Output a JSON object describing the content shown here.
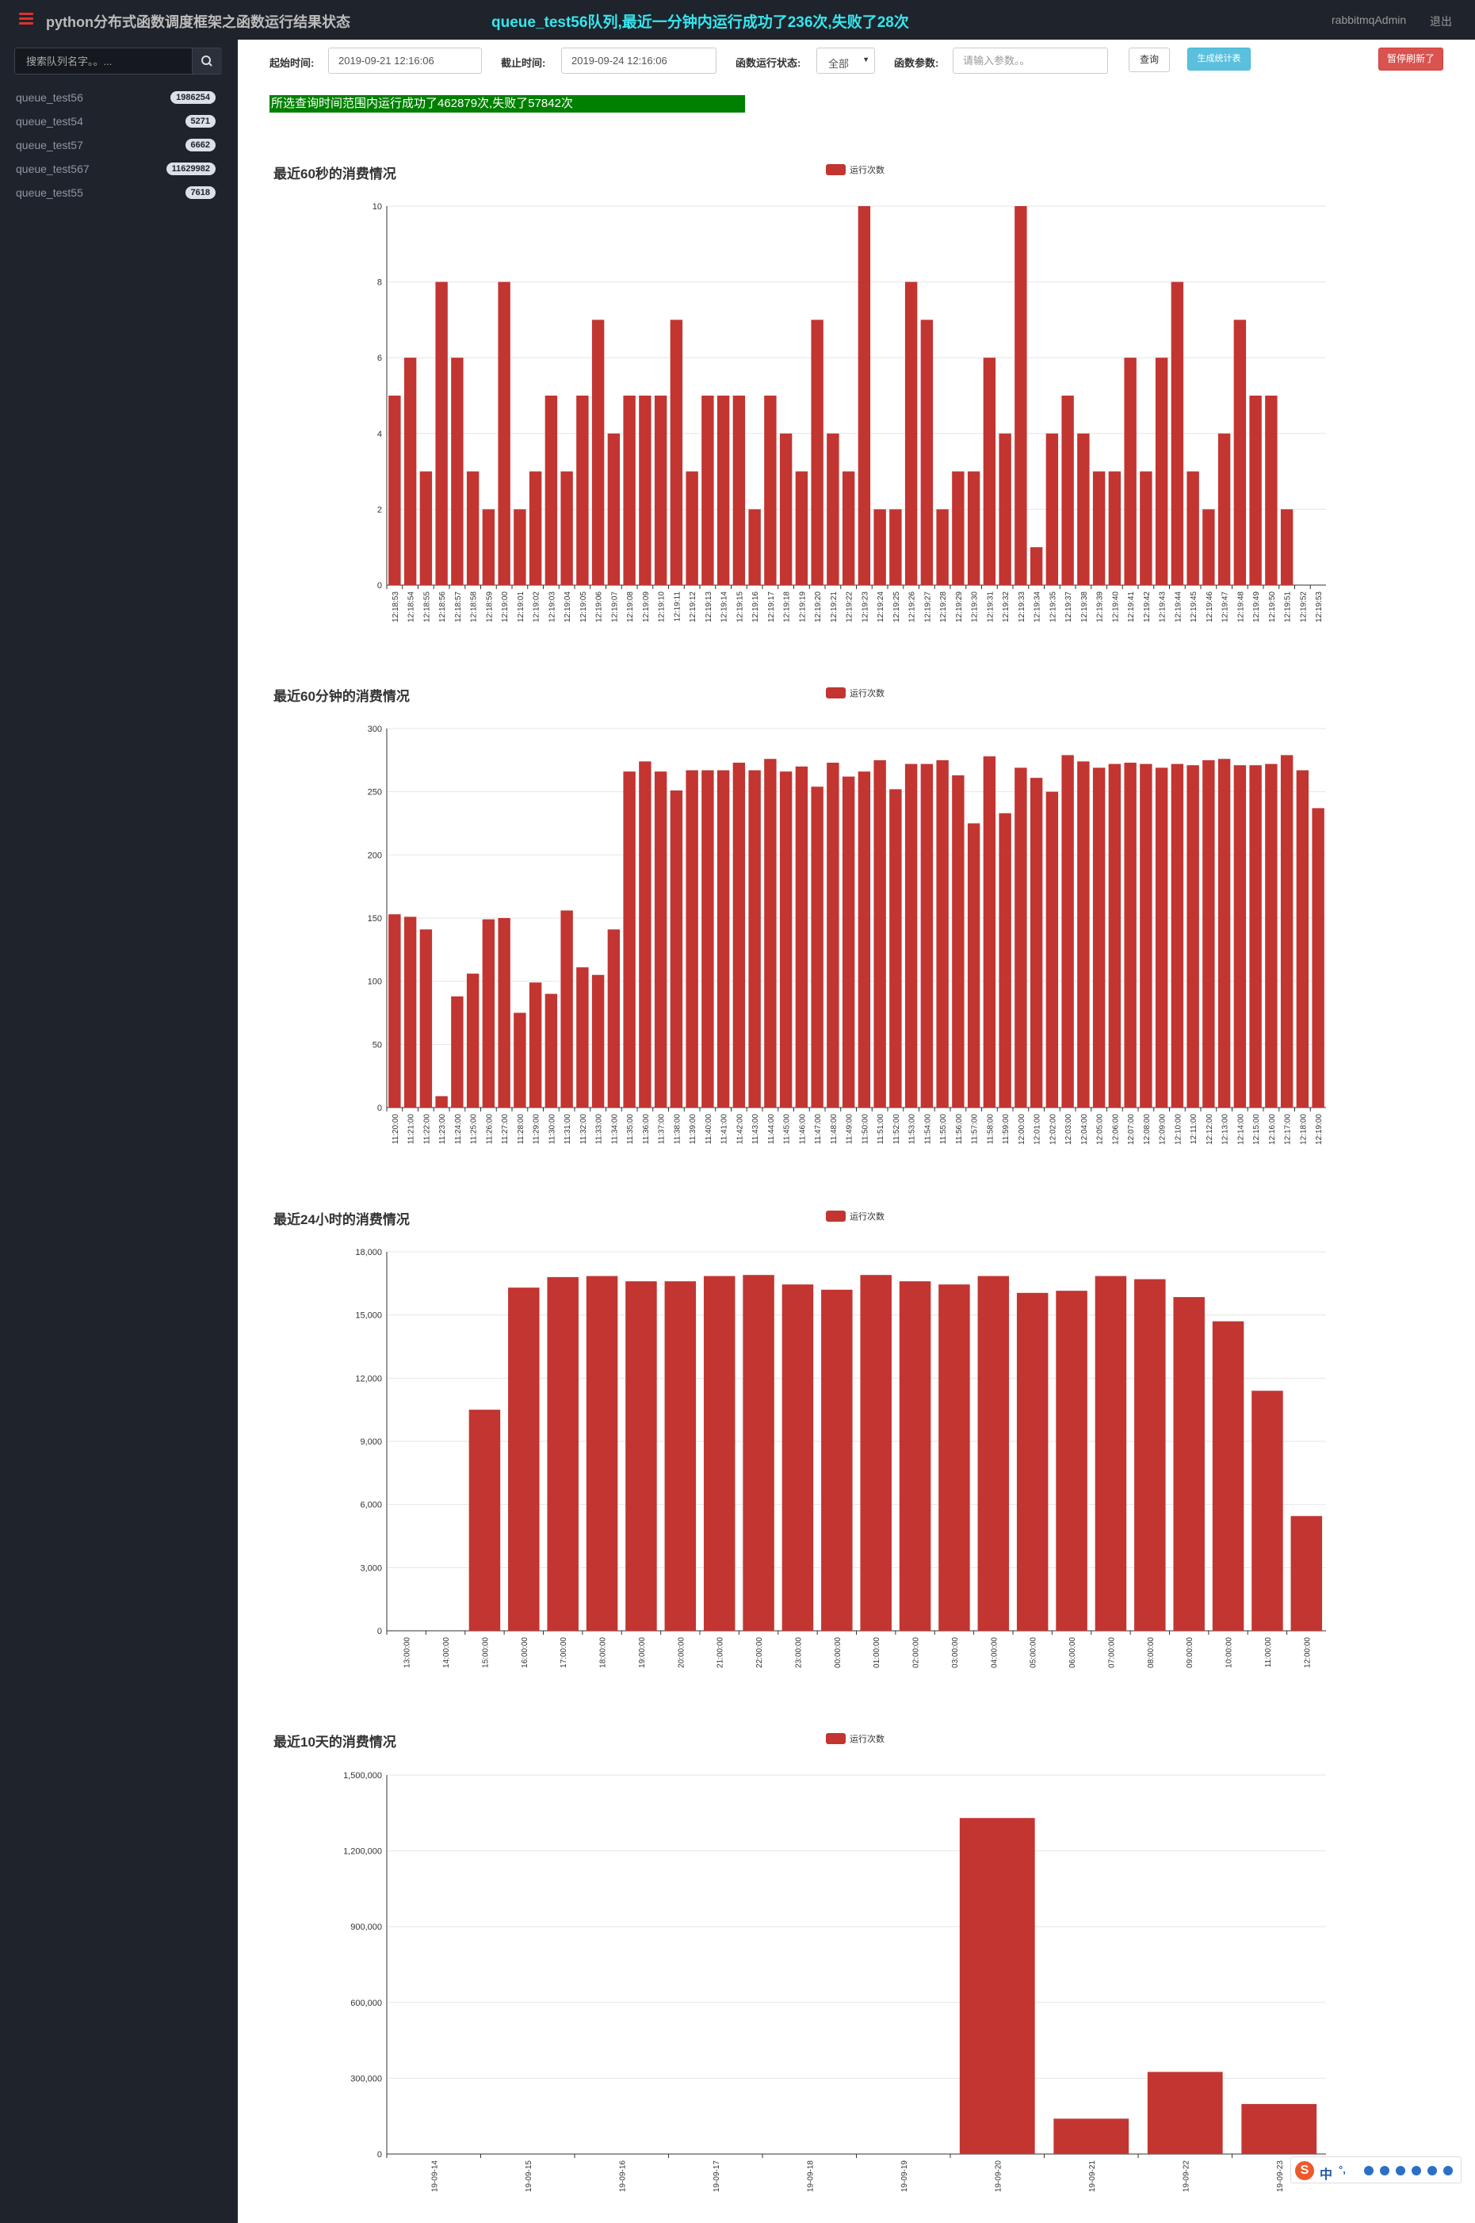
{
  "topbar": {
    "title": "python分布式函数调度框架之函数运行结果状态",
    "headline": "queue_test56队列,最近一分钟内运行成功了236次,失败了28次",
    "user": "rabbitmqAdmin",
    "logout": "退出"
  },
  "sidebar": {
    "search_placeholder": "搜索队列名字。。...",
    "queues": [
      {
        "name": "queue_test56",
        "count": "1986254"
      },
      {
        "name": "queue_test54",
        "count": "5271"
      },
      {
        "name": "queue_test57",
        "count": "6662"
      },
      {
        "name": "queue_test567",
        "count": "11629982"
      },
      {
        "name": "queue_test55",
        "count": "7618"
      }
    ]
  },
  "filters": {
    "start_label": "起始时间:",
    "start_value": "2019-09-21 12:16:06",
    "end_label": "截止时间:",
    "end_value": "2019-09-24 12:16:06",
    "status_label": "函数运行状态:",
    "status_value": "全部",
    "params_label": "函数参数:",
    "params_placeholder": "请输入参数。。",
    "query_button": "查询",
    "stats_button": "生成统计表",
    "stop_button": "暂停刷新了"
  },
  "summary": "所选查询时间范围内运行成功了462879次,失败了57842次",
  "colors": {
    "bar": "#c23531",
    "sidebar_bg": "#1f232b",
    "headline": "#35e6ef",
    "summary_bg": "#008000"
  },
  "chart_data": [
    {
      "type": "bar",
      "title": "最近60秒的消费情况",
      "legend": "运行次数",
      "ylim": [
        0,
        10
      ],
      "yticks": [
        0,
        2,
        4,
        6,
        8,
        10
      ],
      "categories": [
        "12:18:53",
        "12:18:54",
        "12:18:55",
        "12:18:56",
        "12:18:57",
        "12:18:58",
        "12:18:59",
        "12:19:00",
        "12:19:01",
        "12:19:02",
        "12:19:03",
        "12:19:04",
        "12:19:05",
        "12:19:06",
        "12:19:07",
        "12:19:08",
        "12:19:09",
        "12:19:10",
        "12:19:11",
        "12:19:12",
        "12:19:13",
        "12:19:14",
        "12:19:15",
        "12:19:16",
        "12:19:17",
        "12:19:18",
        "12:19:19",
        "12:19:20",
        "12:19:21",
        "12:19:22",
        "12:19:23",
        "12:19:24",
        "12:19:25",
        "12:19:26",
        "12:19:27",
        "12:19:28",
        "12:19:29",
        "12:19:30",
        "12:19:31",
        "12:19:32",
        "12:19:33",
        "12:19:34",
        "12:19:35",
        "12:19:37",
        "12:19:38",
        "12:19:39",
        "12:19:40",
        "12:19:41",
        "12:19:42",
        "12:19:43",
        "12:19:44",
        "12:19:45",
        "12:19:46",
        "12:19:47",
        "12:19:48",
        "12:19:49",
        "12:19:50",
        "12:19:51",
        "12:19:52",
        "12:19:53"
      ],
      "values": [
        5,
        6,
        3,
        8,
        6,
        3,
        2,
        8,
        2,
        3,
        5,
        3,
        5,
        7,
        4,
        5,
        5,
        5,
        7,
        3,
        5,
        5,
        5,
        2,
        5,
        4,
        3,
        7,
        4,
        3,
        10,
        2,
        2,
        8,
        7,
        2,
        3,
        3,
        6,
        4,
        10,
        1,
        4,
        5,
        4,
        3,
        3,
        6,
        3,
        6,
        8,
        3,
        2,
        4,
        7,
        5,
        5,
        2,
        0,
        0
      ]
    },
    {
      "type": "bar",
      "title": "最近60分钟的消费情况",
      "legend": "运行次数",
      "ylim": [
        0,
        300
      ],
      "yticks": [
        0,
        50,
        100,
        150,
        200,
        250,
        300
      ],
      "categories": [
        "11:20:00",
        "11:21:00",
        "11:22:00",
        "11:23:00",
        "11:24:00",
        "11:25:00",
        "11:26:00",
        "11:27:00",
        "11:28:00",
        "11:29:00",
        "11:30:00",
        "11:31:00",
        "11:32:00",
        "11:33:00",
        "11:34:00",
        "11:35:00",
        "11:36:00",
        "11:37:00",
        "11:38:00",
        "11:39:00",
        "11:40:00",
        "11:41:00",
        "11:42:00",
        "11:43:00",
        "11:44:00",
        "11:45:00",
        "11:46:00",
        "11:47:00",
        "11:48:00",
        "11:49:00",
        "11:50:00",
        "11:51:00",
        "11:52:00",
        "11:53:00",
        "11:54:00",
        "11:55:00",
        "11:56:00",
        "11:57:00",
        "11:58:00",
        "11:59:00",
        "12:00:00",
        "12:01:00",
        "12:02:00",
        "12:03:00",
        "12:04:00",
        "12:05:00",
        "12:06:00",
        "12:07:00",
        "12:08:00",
        "12:09:00",
        "12:10:00",
        "12:11:00",
        "12:12:00",
        "12:13:00",
        "12:14:00",
        "12:15:00",
        "12:16:00",
        "12:17:00",
        "12:18:00",
        "12:19:00"
      ],
      "values": [
        153,
        151,
        141,
        9,
        88,
        106,
        149,
        150,
        75,
        99,
        90,
        156,
        111,
        105,
        141,
        266,
        274,
        266,
        251,
        267,
        267,
        267,
        273,
        267,
        276,
        266,
        270,
        254,
        273,
        262,
        266,
        275,
        252,
        272,
        272,
        275,
        263,
        225,
        278,
        233,
        269,
        261,
        250,
        279,
        274,
        269,
        272,
        273,
        272,
        269,
        272,
        271,
        275,
        276,
        271,
        271,
        272,
        279,
        267,
        237
      ]
    },
    {
      "type": "bar",
      "title": "最近24小时的消费情况",
      "legend": "运行次数",
      "ylim": [
        0,
        18000
      ],
      "yticks": [
        0,
        3000,
        6000,
        9000,
        12000,
        15000,
        18000
      ],
      "ytick_labels": [
        "0",
        "3,000",
        "6,000",
        "9,000",
        "12,000",
        "15,000",
        "18,000"
      ],
      "categories": [
        "13:00:00",
        "14:00:00",
        "15:00:00",
        "16:00:00",
        "17:00:00",
        "18:00:00",
        "19:00:00",
        "20:00:00",
        "21:00:00",
        "22:00:00",
        "23:00:00",
        "00:00:00",
        "01:00:00",
        "02:00:00",
        "03:00:00",
        "04:00:00",
        "05:00:00",
        "06:00:00",
        "07:00:00",
        "08:00:00",
        "09:00:00",
        "10:00:00",
        "11:00:00",
        "12:00:00"
      ],
      "values": [
        0,
        0,
        10500,
        16300,
        16800,
        16850,
        16600,
        16600,
        16850,
        16900,
        16450,
        16200,
        16900,
        16600,
        16450,
        16850,
        16050,
        16150,
        16850,
        16700,
        15850,
        14700,
        11400,
        5450
      ]
    },
    {
      "type": "bar",
      "title": "最近10天的消费情况",
      "legend": "运行次数",
      "ylim": [
        0,
        1500000
      ],
      "yticks": [
        0,
        300000,
        600000,
        900000,
        1200000,
        1500000
      ],
      "ytick_labels": [
        "0",
        "300,000",
        "600,000",
        "900,000",
        "1,200,000",
        "1,500,000"
      ],
      "categories": [
        "19-09-14",
        "19-09-15",
        "19-09-16",
        "19-09-17",
        "19-09-18",
        "19-09-19",
        "19-09-20",
        "19-09-21",
        "19-09-22",
        "19-09-23"
      ],
      "values": [
        0,
        0,
        0,
        0,
        0,
        0,
        1330000,
        140000,
        325000,
        198000
      ]
    }
  ],
  "ime": {
    "label": "中",
    "extra": "°,"
  }
}
